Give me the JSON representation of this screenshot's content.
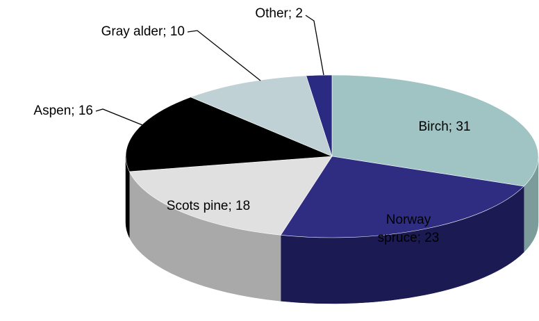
{
  "chart_data": {
    "type": "pie3d",
    "categories": [
      "Birch",
      "Norway spruce",
      "Scots pine",
      "Aspen",
      "Gray alder",
      "Other"
    ],
    "values": [
      31,
      23,
      18,
      16,
      10,
      2
    ],
    "value_labels": [
      [
        "Birch; 31"
      ],
      [
        "Norway",
        "spruce; 23"
      ],
      [
        "Scots pine; 18"
      ],
      [
        "Aspen; 16"
      ],
      [
        "Gray alder; 10"
      ],
      [
        "Other; 2"
      ]
    ],
    "colors": [
      "#a0c4c4",
      "#2e2d82",
      "#e0e0e0",
      "#000000",
      "#bfd1d4",
      "#2a2a82"
    ],
    "side_colors": [
      "#7c9c9c",
      "#1b1a52",
      "#a9a9a9",
      "#000000",
      "#97a8aa",
      "#1b1a52"
    ]
  }
}
